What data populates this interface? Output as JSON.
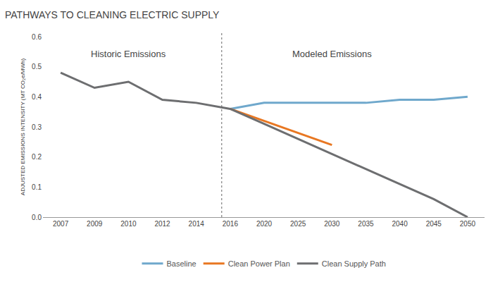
{
  "chart_data": {
    "type": "line",
    "title": "PATHWAYS TO CLEANING ELECTRIC SUPPLY",
    "y_label": "ADJUSTED EMISSIONS INTENSITY (MT CO₂e/MWh)",
    "annotations": [
      "Historic Emissions",
      "Modeled Emissions"
    ],
    "categories": [
      "2007",
      "2009",
      "2010",
      "2012",
      "2014",
      "2016",
      "2020",
      "2025",
      "2030",
      "2035",
      "2040",
      "2045",
      "2050"
    ],
    "series": [
      {
        "name": "Baseline",
        "color": "#6fa8cc",
        "values": [
          null,
          null,
          null,
          null,
          null,
          0.36,
          0.38,
          0.38,
          0.38,
          0.38,
          0.39,
          0.39,
          0.4
        ]
      },
      {
        "name": "Clean Power Plan",
        "color": "#e87722",
        "values": [
          null,
          null,
          null,
          null,
          null,
          0.36,
          0.32,
          0.28,
          0.24,
          null,
          null,
          null,
          null
        ]
      },
      {
        "name": "Clean Supply Path",
        "color": "#6d6e70",
        "values": [
          0.48,
          0.43,
          0.45,
          0.39,
          0.38,
          0.36,
          0.31,
          0.26,
          0.21,
          0.16,
          0.11,
          0.06,
          0.0
        ]
      }
    ],
    "ylim": [
      0,
      0.6
    ],
    "yticks": [
      {
        "value": 0,
        "label": "0.0"
      },
      0.1,
      0.2,
      0.3,
      0.4,
      0.5,
      0.6
    ],
    "grid": false,
    "legend": "bottom"
  }
}
